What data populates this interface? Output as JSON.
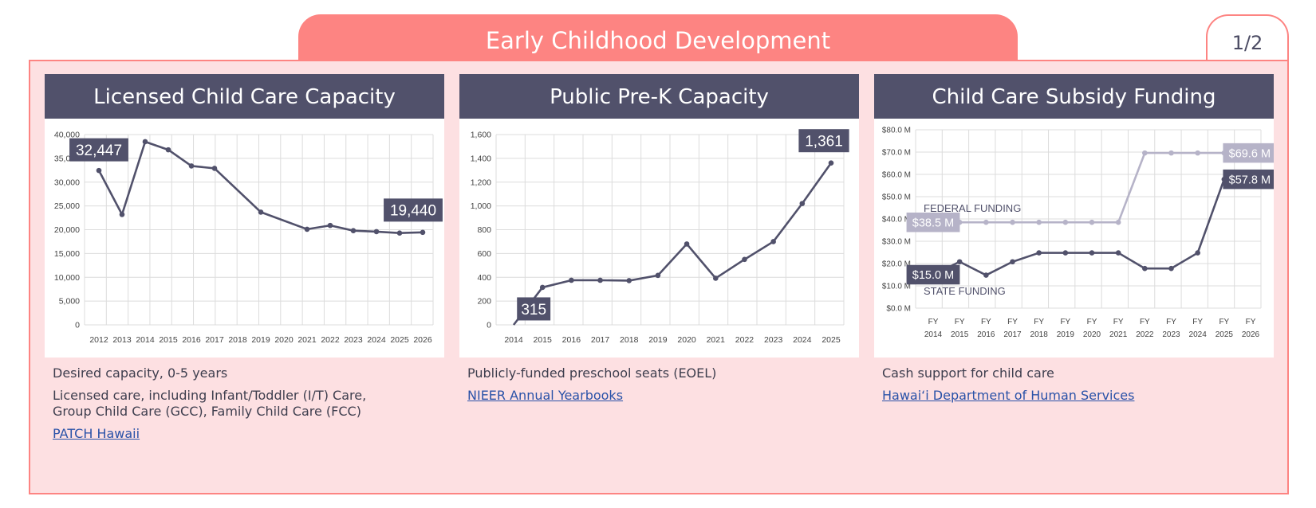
{
  "header": {
    "title": "Early Childhood Development",
    "page_indicator": "1/2"
  },
  "colors": {
    "accent": "#fd8482",
    "panel": "#fde0e2",
    "header": "#51516b",
    "series_dark": "#51516b",
    "series_light": "#b6b3c8",
    "link": "#2a52a8"
  },
  "cards": [
    {
      "title": "Licensed Child Care Capacity",
      "desc": [
        "Desired capacity, 0-5 years",
        "Licensed care, including Infant/Toddler (I/T) Care,\nGroup Child Care (GCC), Family Child Care (FCC)"
      ],
      "link": "PATCH Hawaii"
    },
    {
      "title": "Public Pre-K Capacity",
      "desc": [
        "Publicly-funded preschool seats (EOEL)"
      ],
      "link": "NIEER Annual Yearbooks"
    },
    {
      "title": "Child Care Subsidy Funding",
      "desc": [
        "Cash support for child care"
      ],
      "link": "Hawai‘i Department of Human Services"
    }
  ],
  "chart_data": [
    {
      "type": "line",
      "title": "Licensed Child Care Capacity",
      "x": [
        "2012",
        "2013",
        "2014",
        "2015",
        "2016",
        "2017",
        "2018",
        "2019",
        "2020",
        "2021",
        "2022",
        "2023",
        "2024",
        "2025",
        "2026"
      ],
      "y_ticks": [
        "0",
        "5,000",
        "10,000",
        "15,000",
        "20,000",
        "25,000",
        "30,000",
        "35,000",
        "40,000"
      ],
      "ylim": [
        0,
        40000
      ],
      "grid": true,
      "series": [
        {
          "values": [
            32447,
            23200,
            38500,
            36800,
            33400,
            32900,
            null,
            23700,
            null,
            20100,
            20900,
            19800,
            19600,
            19300,
            19440
          ]
        }
      ],
      "labels": [
        {
          "text": "32,447",
          "index": 0
        },
        {
          "text": "19,440",
          "index": 14
        }
      ]
    },
    {
      "type": "line",
      "title": "Public Pre-K Capacity",
      "x": [
        "2014",
        "2015",
        "2016",
        "2017",
        "2018",
        "2019",
        "2020",
        "2021",
        "2022",
        "2023",
        "2024",
        "2025"
      ],
      "y_ticks": [
        "0",
        "200",
        "400",
        "600",
        "800",
        "1,000",
        "1,200",
        "1,400",
        "1,600"
      ],
      "ylim": [
        0,
        1600
      ],
      "grid": true,
      "series": [
        {
          "values": [
            0,
            315,
            375,
            375,
            372,
            416,
            680,
            392,
            550,
            700,
            1020,
            1361
          ]
        }
      ],
      "labels": [
        {
          "text": "315",
          "index": 1
        },
        {
          "text": "1,361",
          "index": 11
        }
      ]
    },
    {
      "type": "line",
      "title": "Child Care Subsidy Funding",
      "x": [
        "FY\n2014",
        "FY\n2015",
        "FY\n2016",
        "FY\n2017",
        "FY\n2018",
        "FY\n2019",
        "FY\n2020",
        "FY\n2021",
        "FY\n2022",
        "FY\n2023",
        "FY\n2024",
        "FY\n2025",
        "FY\n2026"
      ],
      "y_ticks": [
        "$0.0 M",
        "$10.0 M",
        "$20.0 M",
        "$30.0 M",
        "$40.0 M",
        "$50.0 M",
        "$60.0 M",
        "$70.0 M",
        "$80.0 M"
      ],
      "ylim": [
        0,
        80
      ],
      "grid": true,
      "series": [
        {
          "name": "FEDERAL FUNDING",
          "values": [
            38.5,
            38.5,
            38.5,
            38.5,
            38.5,
            38.5,
            38.5,
            38.5,
            69.6,
            69.6,
            69.6,
            69.6,
            null
          ]
        },
        {
          "name": "STATE FUNDING",
          "values": [
            15.0,
            20.8,
            14.8,
            20.8,
            24.8,
            24.8,
            24.8,
            24.8,
            17.8,
            17.8,
            24.8,
            57.8,
            null
          ]
        }
      ],
      "labels": [
        {
          "text": "$38.5 M",
          "series": 0,
          "index": 0
        },
        {
          "text": "$69.6 M",
          "series": 0,
          "index": 11
        },
        {
          "text": "$15.0 M",
          "series": 1,
          "index": 0
        },
        {
          "text": "$57.8 M",
          "series": 1,
          "index": 11
        }
      ]
    }
  ]
}
